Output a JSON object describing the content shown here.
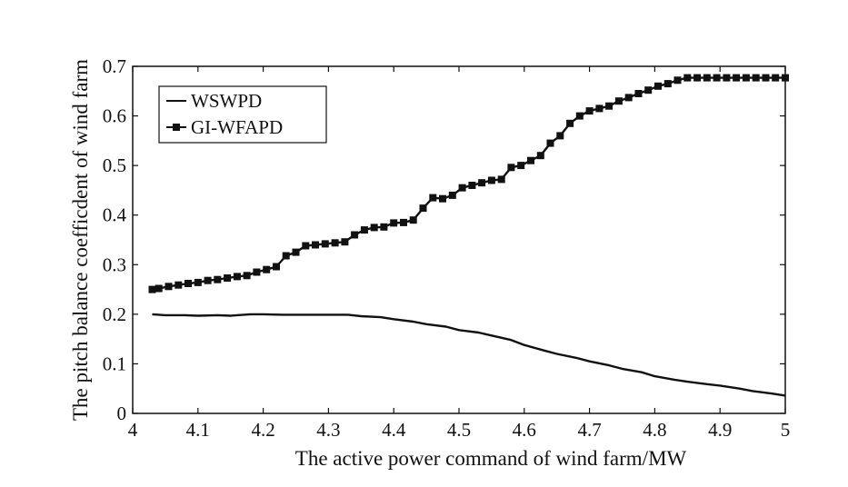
{
  "chart_data": {
    "type": "line",
    "title": "",
    "xlabel": "The active power command of wind farm/MW",
    "ylabel": "The pitch balance coefficdent of wind farm",
    "xlim": [
      4,
      5
    ],
    "ylim": [
      0,
      0.7
    ],
    "xticks": [
      "4",
      "4.1",
      "4.2",
      "4.3",
      "4.4",
      "4.5",
      "4.6",
      "4.7",
      "4.8",
      "4.9",
      "5"
    ],
    "yticks": [
      "0",
      "0.1",
      "0.2",
      "0.3",
      "0.4",
      "0.5",
      "0.6",
      "0.7"
    ],
    "grid": false,
    "legend": {
      "position": "top-left"
    },
    "series": [
      {
        "name": "WSWPD",
        "color": "#111111",
        "marker": "none",
        "x": [
          4.03,
          4.05,
          4.08,
          4.1,
          4.13,
          4.15,
          4.18,
          4.2,
          4.23,
          4.25,
          4.28,
          4.3,
          4.33,
          4.35,
          4.38,
          4.4,
          4.43,
          4.45,
          4.48,
          4.5,
          4.53,
          4.55,
          4.58,
          4.6,
          4.63,
          4.65,
          4.68,
          4.7,
          4.73,
          4.75,
          4.78,
          4.8,
          4.83,
          4.85,
          4.88,
          4.9,
          4.93,
          4.95,
          4.98,
          5.0
        ],
        "y": [
          0.2,
          0.198,
          0.198,
          0.197,
          0.198,
          0.197,
          0.2,
          0.2,
          0.199,
          0.199,
          0.199,
          0.199,
          0.199,
          0.196,
          0.194,
          0.19,
          0.185,
          0.18,
          0.175,
          0.168,
          0.163,
          0.157,
          0.148,
          0.138,
          0.127,
          0.12,
          0.112,
          0.105,
          0.097,
          0.09,
          0.083,
          0.075,
          0.068,
          0.064,
          0.059,
          0.056,
          0.05,
          0.045,
          0.04,
          0.036
        ]
      },
      {
        "name": "GI-WFAPD",
        "color": "#111111",
        "marker": "square",
        "x": [
          4.03,
          4.04,
          4.055,
          4.07,
          4.085,
          4.1,
          4.115,
          4.13,
          4.145,
          4.16,
          4.175,
          4.19,
          4.205,
          4.22,
          4.235,
          4.25,
          4.265,
          4.28,
          4.295,
          4.31,
          4.325,
          4.34,
          4.355,
          4.37,
          4.385,
          4.4,
          4.415,
          4.43,
          4.445,
          4.46,
          4.475,
          4.49,
          4.505,
          4.52,
          4.535,
          4.55,
          4.565,
          4.58,
          4.595,
          4.61,
          4.625,
          4.64,
          4.655,
          4.67,
          4.685,
          4.7,
          4.715,
          4.73,
          4.745,
          4.76,
          4.775,
          4.79,
          4.805,
          4.82,
          4.835,
          4.85,
          4.865,
          4.88,
          4.895,
          4.91,
          4.925,
          4.94,
          4.955,
          4.97,
          4.985,
          5.0
        ],
        "y": [
          0.25,
          0.252,
          0.256,
          0.259,
          0.262,
          0.264,
          0.268,
          0.27,
          0.273,
          0.276,
          0.278,
          0.285,
          0.29,
          0.296,
          0.318,
          0.325,
          0.338,
          0.34,
          0.342,
          0.344,
          0.346,
          0.36,
          0.37,
          0.375,
          0.376,
          0.384,
          0.385,
          0.39,
          0.414,
          0.435,
          0.433,
          0.44,
          0.455,
          0.46,
          0.465,
          0.47,
          0.472,
          0.496,
          0.5,
          0.51,
          0.52,
          0.545,
          0.56,
          0.585,
          0.6,
          0.61,
          0.615,
          0.62,
          0.63,
          0.637,
          0.645,
          0.652,
          0.66,
          0.665,
          0.672,
          0.677,
          0.677,
          0.677,
          0.677,
          0.677,
          0.677,
          0.677,
          0.677,
          0.677,
          0.677,
          0.677
        ]
      }
    ]
  }
}
